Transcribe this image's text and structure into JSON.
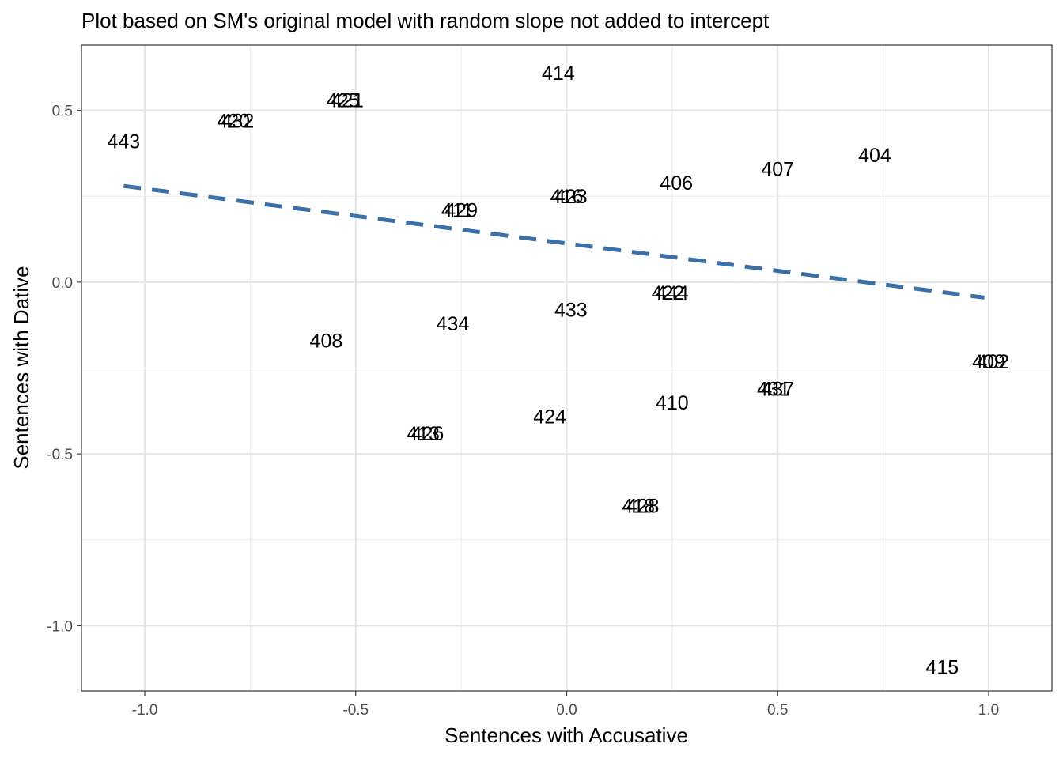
{
  "chart_data": {
    "type": "scatter",
    "title": "Plot based on SM's original model with random slope not added to intercept",
    "xlabel": "Sentences with Accusative",
    "ylabel": "Sentences with Dative",
    "xlim": [
      -1.15,
      1.15
    ],
    "ylim": [
      -1.19,
      0.69
    ],
    "x_ticks": [
      -1.0,
      -0.5,
      0.0,
      0.5,
      1.0
    ],
    "x_tick_labels": [
      "-1.0",
      "-0.5",
      "0.0",
      "0.5",
      "1.0"
    ],
    "y_ticks": [
      -1.0,
      -0.5,
      0.0,
      0.5
    ],
    "y_tick_labels": [
      "-1.0",
      "-0.5",
      "0.0",
      "0.5"
    ],
    "grid": true,
    "points": [
      {
        "label": "443",
        "x": -1.05,
        "y": 0.41
      },
      {
        "label": "420",
        "x": -0.79,
        "y": 0.47
      },
      {
        "label": "432",
        "x": -0.78,
        "y": 0.47
      },
      {
        "label": "425",
        "x": -0.53,
        "y": 0.53
      },
      {
        "label": "421",
        "x": -0.52,
        "y": 0.53
      },
      {
        "label": "414",
        "x": -0.02,
        "y": 0.61
      },
      {
        "label": "406",
        "x": 0.26,
        "y": 0.29
      },
      {
        "label": "407",
        "x": 0.5,
        "y": 0.33
      },
      {
        "label": "404",
        "x": 0.73,
        "y": 0.37
      },
      {
        "label": "411",
        "x": -0.26,
        "y": 0.21
      },
      {
        "label": "429",
        "x": -0.25,
        "y": 0.21
      },
      {
        "label": "416",
        "x": 0.0,
        "y": 0.25
      },
      {
        "label": "423",
        "x": 0.01,
        "y": 0.25
      },
      {
        "label": "422",
        "x": 0.24,
        "y": -0.03
      },
      {
        "label": "444",
        "x": 0.25,
        "y": -0.03
      },
      {
        "label": "433",
        "x": 0.01,
        "y": -0.08
      },
      {
        "label": "434",
        "x": -0.27,
        "y": -0.12
      },
      {
        "label": "408",
        "x": -0.57,
        "y": -0.17
      },
      {
        "label": "409",
        "x": 1.0,
        "y": -0.23
      },
      {
        "label": "402",
        "x": 1.01,
        "y": -0.23
      },
      {
        "label": "431",
        "x": 0.49,
        "y": -0.31
      },
      {
        "label": "437",
        "x": 0.5,
        "y": -0.31
      },
      {
        "label": "410",
        "x": 0.25,
        "y": -0.35
      },
      {
        "label": "424",
        "x": -0.04,
        "y": -0.39
      },
      {
        "label": "413",
        "x": -0.34,
        "y": -0.44
      },
      {
        "label": "426",
        "x": -0.33,
        "y": -0.44
      },
      {
        "label": "418",
        "x": 0.17,
        "y": -0.65
      },
      {
        "label": "428",
        "x": 0.18,
        "y": -0.65
      },
      {
        "label": "415",
        "x": 0.89,
        "y": -1.12
      }
    ],
    "fit_line": {
      "style": "dashed",
      "color": "#3a6fa8",
      "x": [
        -1.05,
        0.99
      ],
      "y": [
        0.28,
        -0.045
      ]
    }
  }
}
